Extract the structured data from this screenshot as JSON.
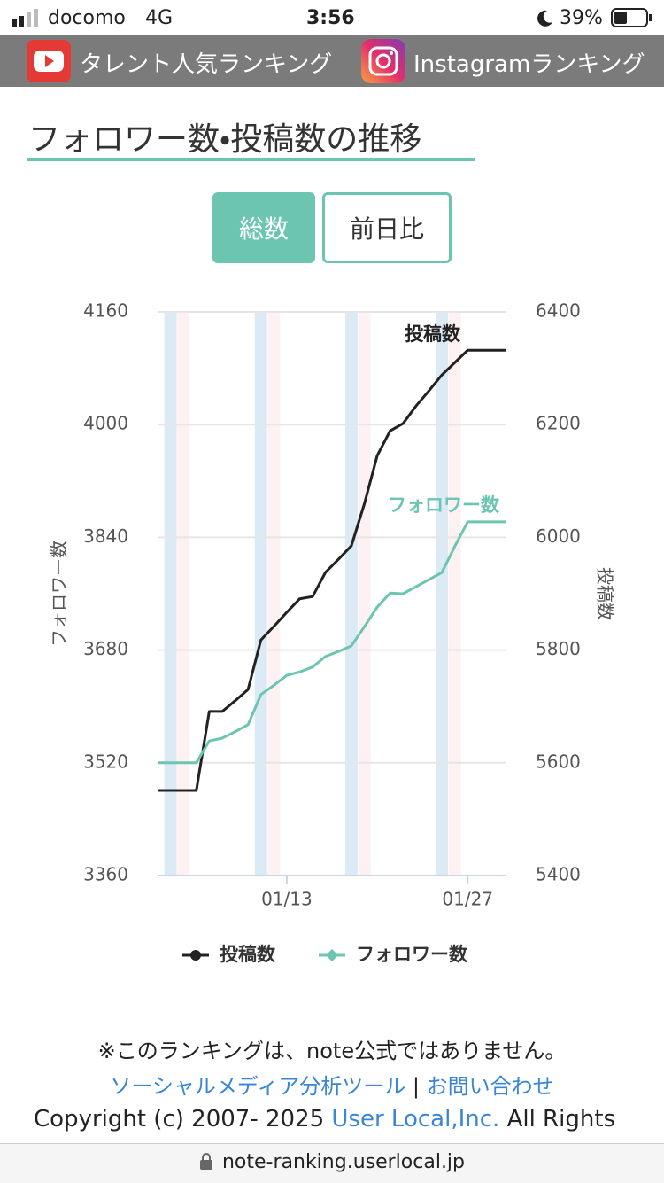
{
  "status": {
    "carrier": "docomo",
    "network": "4G",
    "time": "3:56",
    "battery": "39%"
  },
  "nav": {
    "links": [
      "タレント人気ランキング",
      "Instagramランキング"
    ]
  },
  "header": {
    "title": "フォロワー数・投稿数の推移"
  },
  "tabs": [
    "総数",
    "前日比"
  ],
  "chart_data": {
    "type": "line",
    "categories": [
      null,
      null,
      null,
      null,
      null,
      null,
      null,
      null,
      null,
      null,
      "01/13",
      null,
      null,
      null,
      null,
      null,
      null,
      null,
      null,
      null,
      null,
      null,
      null,
      null,
      "01/27",
      null,
      null,
      null
    ],
    "series": [
      {
        "name": "投稿数",
        "color": "#222222",
        "axis": "y2",
        "marker": "circle",
        "values": [
          5551,
          5551,
          5551,
          5551,
          5691,
          5691,
          5710,
          5730,
          5818,
          5842,
          5867,
          5891,
          5895,
          5938,
          5961,
          5985,
          6059,
          6145,
          6189,
          6202,
          6233,
          6260,
          6288,
          6310,
          6332,
          6332,
          6332,
          6332
        ]
      },
      {
        "name": "フォロワー数",
        "color": "#6cc5b1",
        "marker": "diamond",
        "values": [
          3520,
          3520,
          3520,
          3520,
          3551,
          3555,
          3564,
          3574,
          3617,
          3630,
          3644,
          3649,
          3656,
          3671,
          3678,
          3686,
          3713,
          3741,
          3761,
          3760,
          3770,
          3780,
          3790,
          3827,
          3862,
          3862,
          3862,
          3862
        ]
      }
    ],
    "ylabel": "フォロワー数",
    "y2label": "投稿数",
    "ylim": [
      3360,
      4160
    ],
    "yticks": [
      3360,
      3520,
      3680,
      3840,
      4000,
      4160
    ],
    "y2lim": [
      5400,
      6400
    ],
    "y2ticks": [
      5400,
      5600,
      5800,
      6000,
      6200,
      6400
    ],
    "grid": true,
    "legend": "bottom"
  },
  "footer": {
    "note": "※このランキングは、note公式ではありません。",
    "links": [
      "ソーシャルメディア分析ツール",
      "お問い合わせ"
    ],
    "separator": "|",
    "copyright_prefix": "Copyright (c) 2007- 2025",
    "company": "User Local,Inc.",
    "copyright_suffix": "All Rights"
  },
  "browser": {
    "url": "note-ranking.userlocal.jp"
  }
}
